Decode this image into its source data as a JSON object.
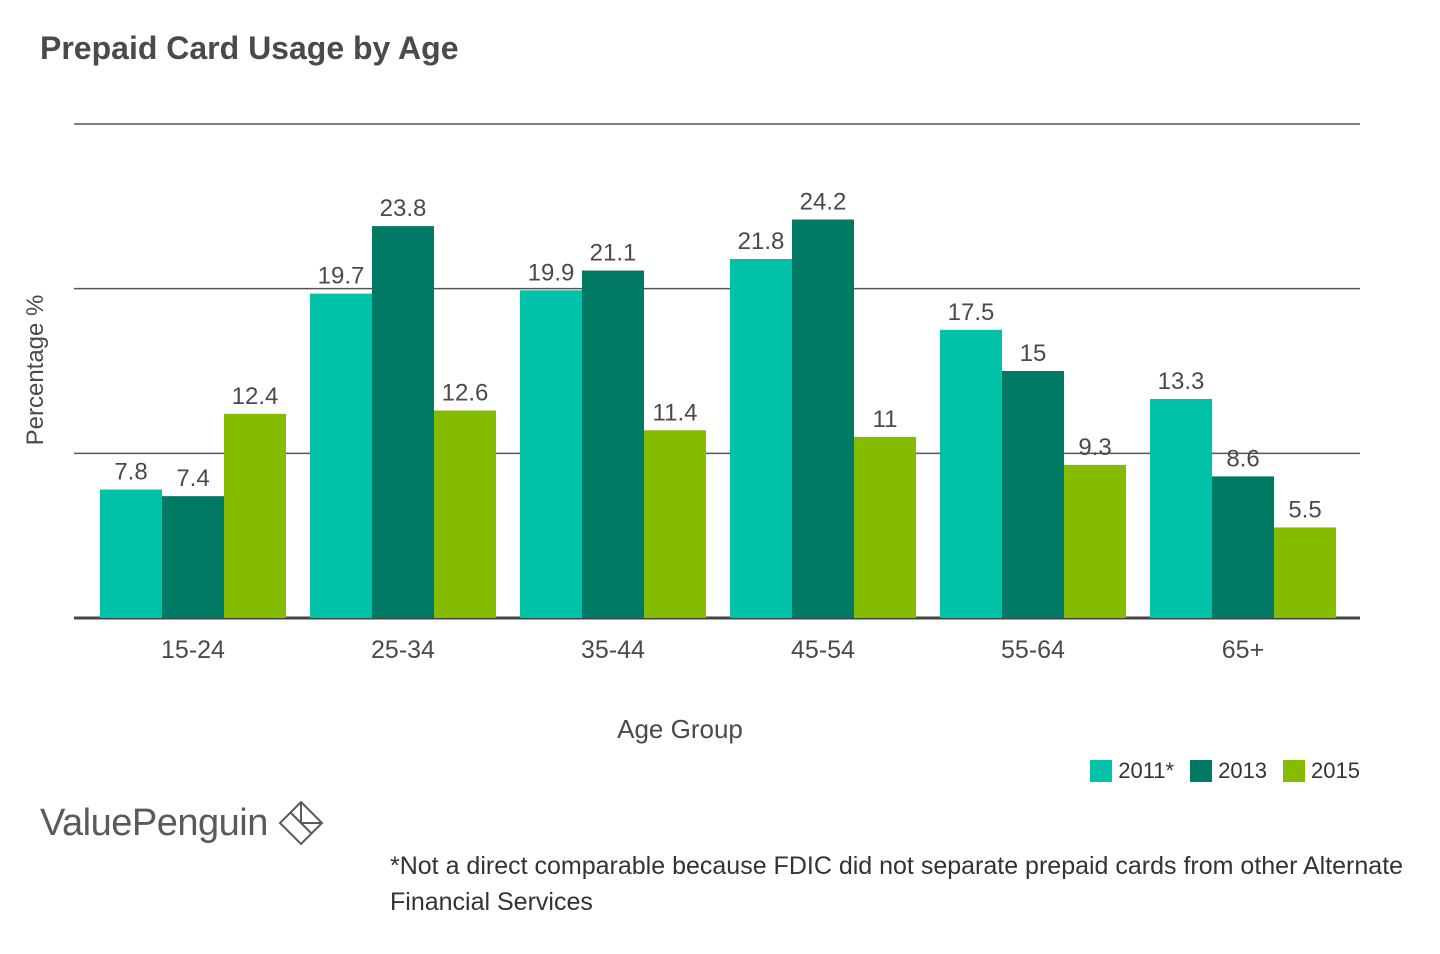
{
  "chart_data": {
    "type": "bar",
    "title": "Prepaid Card Usage by Age",
    "xlabel": "Age Group",
    "ylabel": "Percentage %",
    "categories": [
      "15-24",
      "25-34",
      "35-44",
      "45-54",
      "55-64",
      "65+"
    ],
    "series": [
      {
        "name": "2011*",
        "color": "#00c2a8",
        "values": [
          7.8,
          19.7,
          19.9,
          21.8,
          17.5,
          13.3
        ],
        "labels": [
          "7.8",
          "19.7",
          "19.9",
          "21.8",
          "17.5",
          "13.3"
        ]
      },
      {
        "name": "2013",
        "color": "#007a64",
        "values": [
          7.4,
          23.8,
          21.1,
          24.2,
          15,
          8.6
        ],
        "labels": [
          "7.4",
          "23.8",
          "21.1",
          "24.2",
          "15",
          "8.6"
        ]
      },
      {
        "name": "2015",
        "color": "#85bc00",
        "values": [
          12.4,
          12.6,
          11.4,
          11,
          9.3,
          5.5
        ],
        "labels": [
          "12.4",
          "12.6",
          "11.4",
          "11",
          "9.3",
          "5.5"
        ]
      }
    ],
    "ylim": [
      0,
      30
    ],
    "gridlines": [
      0,
      10,
      20,
      30
    ],
    "legend_position": "bottom-right"
  },
  "branding": {
    "logo_text": "ValuePenguin"
  },
  "footnote": "*Not a direct comparable because FDIC did not separate prepaid cards from other Alternate Financial Services"
}
